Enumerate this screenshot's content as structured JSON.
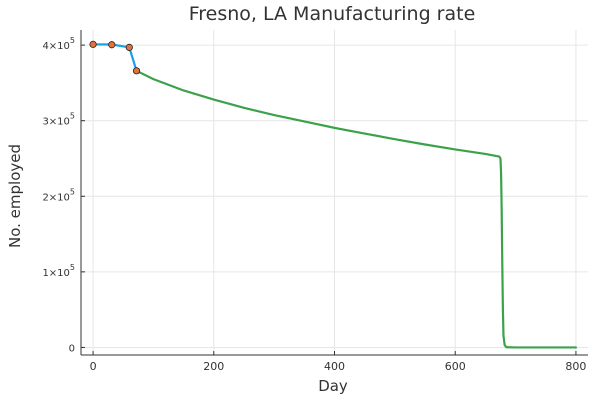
{
  "chart_data": {
    "type": "line",
    "title": "Fresno, LA Manufacturing rate",
    "xlabel": "Day",
    "ylabel": "No. employed",
    "xlim": [
      -20,
      820
    ],
    "ylim": [
      -10000,
      420000
    ],
    "grid": true,
    "legend": "none",
    "x_ticks": [
      {
        "value": 0,
        "label": "0"
      },
      {
        "value": 200,
        "label": "200"
      },
      {
        "value": 400,
        "label": "400"
      },
      {
        "value": 600,
        "label": "600"
      },
      {
        "value": 800,
        "label": "800"
      }
    ],
    "y_ticks": [
      {
        "value": 0,
        "label": "0",
        "mantissa": "",
        "exponent": ""
      },
      {
        "value": 100000,
        "label": "",
        "mantissa": "1×10",
        "exponent": "5"
      },
      {
        "value": 200000,
        "label": "",
        "mantissa": "2×10",
        "exponent": "5"
      },
      {
        "value": 300000,
        "label": "",
        "mantissa": "3×10",
        "exponent": "5"
      },
      {
        "value": 400000,
        "label": "",
        "mantissa": "4×10",
        "exponent": "5"
      }
    ],
    "series": [
      {
        "color": "#1f9ee8",
        "style": "line",
        "points": [
          [
            0,
            401000
          ],
          [
            31,
            400800
          ],
          [
            60,
            397000
          ],
          [
            72,
            366000
          ]
        ]
      },
      {
        "color": "#3ba24a",
        "style": "line",
        "points": [
          [
            72,
            366000
          ],
          [
            100,
            355000
          ],
          [
            150,
            340000
          ],
          [
            200,
            328000
          ],
          [
            250,
            317000
          ],
          [
            300,
            307500
          ],
          [
            350,
            299000
          ],
          [
            400,
            290500
          ],
          [
            450,
            283000
          ],
          [
            500,
            275500
          ],
          [
            550,
            268500
          ],
          [
            600,
            262000
          ],
          [
            650,
            256000
          ],
          [
            673,
            252500
          ],
          [
            675,
            250000
          ],
          [
            676,
            230000
          ],
          [
            677,
            180000
          ],
          [
            678,
            110000
          ],
          [
            679,
            50000
          ],
          [
            680,
            15000
          ],
          [
            682,
            3000
          ],
          [
            685,
            300
          ],
          [
            700,
            0
          ],
          [
            800,
            0
          ]
        ]
      },
      {
        "color": "#e3713b",
        "style": "scatter",
        "points": [
          [
            0,
            401000
          ],
          [
            31,
            400500
          ],
          [
            60,
            397000
          ],
          [
            72,
            366000
          ]
        ]
      }
    ]
  }
}
